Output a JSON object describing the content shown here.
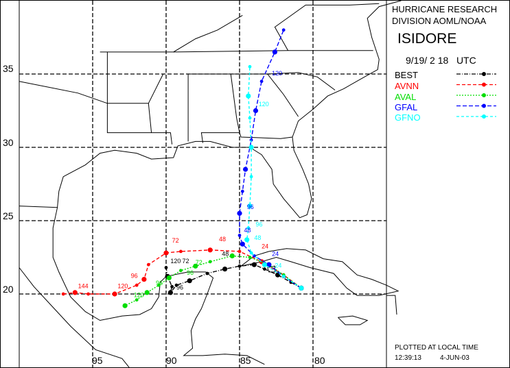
{
  "header": {
    "org_line1": "HURRICANE RESEARCH",
    "org_line2": "DIVISION AOML/NOAA",
    "storm_name": "ISIDORE",
    "datetime": "9/19/ 2 18   UTC"
  },
  "legend": [
    {
      "label": "BEST",
      "color": "#000000"
    },
    {
      "label": "AVNN",
      "color": "#ff0000"
    },
    {
      "label": "AVAL",
      "color": "#00dd00"
    },
    {
      "label": "GFAL",
      "color": "#0000ff"
    },
    {
      "label": "GFNO",
      "color": "#00ffff"
    }
  ],
  "footer": {
    "plotted": "PLOTTED AT LOCAL TIME",
    "time": "12:39:13",
    "date": "4-JUN-03"
  },
  "axes": {
    "lat_labels": [
      "35",
      "30",
      "25",
      "20"
    ],
    "lon_labels": [
      "95",
      "90",
      "85",
      "80"
    ]
  },
  "map": {
    "lon_range": [
      -100,
      -75
    ],
    "lat_range": [
      15,
      40
    ]
  },
  "tracks": {
    "BEST": [
      [
        -80.8,
        20.4
      ],
      [
        -81.5,
        20.8
      ],
      [
        -82.4,
        21.3
      ],
      [
        -83.3,
        21.7
      ],
      [
        -84.0,
        22.0
      ],
      [
        -85.0,
        21.9
      ],
      [
        -86.0,
        21.7
      ],
      [
        -87.2,
        21.4
      ],
      [
        -88.4,
        20.9
      ],
      [
        -89.3,
        20.6
      ],
      [
        -89.7,
        20.1
      ],
      [
        -89.6,
        20.5
      ],
      [
        -89.9,
        21.2
      ],
      [
        -90.0,
        21.8
      ]
    ],
    "AVNN": [
      [
        -80.8,
        20.4
      ],
      [
        -82.0,
        21.3
      ],
      [
        -83.5,
        22.2
      ],
      [
        -85.0,
        22.9
      ],
      [
        -87.0,
        23.0
      ],
      [
        -89.0,
        22.9
      ],
      [
        -90.0,
        22.8
      ],
      [
        -91.2,
        22.0
      ],
      [
        -91.5,
        21.0
      ],
      [
        -92.0,
        20.6
      ],
      [
        -93.5,
        20.0
      ],
      [
        -95.3,
        20.0
      ],
      [
        -96.2,
        20.1
      ],
      [
        -97.0,
        20.0
      ]
    ],
    "AVAL": [
      [
        -80.8,
        20.4
      ],
      [
        -82.0,
        21.3
      ],
      [
        -83.0,
        22.0
      ],
      [
        -84.3,
        22.5
      ],
      [
        -85.5,
        22.6
      ],
      [
        -87.0,
        22.2
      ],
      [
        -88.0,
        21.9
      ],
      [
        -89.0,
        21.6
      ],
      [
        -89.8,
        21.1
      ],
      [
        -90.5,
        20.6
      ],
      [
        -91.3,
        20.1
      ],
      [
        -92.0,
        19.6
      ],
      [
        -92.8,
        19.2
      ]
    ],
    "GFAL": [
      [
        -80.8,
        20.4
      ],
      [
        -82.0,
        21.2
      ],
      [
        -83.0,
        22.0
      ],
      [
        -84.0,
        22.6
      ],
      [
        -84.8,
        23.4
      ],
      [
        -85.0,
        24.0
      ],
      [
        -85.0,
        25.5
      ],
      [
        -84.8,
        27.0
      ],
      [
        -84.6,
        28.5
      ],
      [
        -84.2,
        30.5
      ],
      [
        -83.9,
        32.5
      ],
      [
        -83.5,
        34.5
      ],
      [
        -82.6,
        36.5
      ],
      [
        -82.0,
        38.0
      ]
    ],
    "GFNO": [
      [
        -80.8,
        20.4
      ],
      [
        -82.0,
        21.2
      ],
      [
        -83.3,
        22.0
      ],
      [
        -84.2,
        22.8
      ],
      [
        -84.5,
        23.7
      ],
      [
        -84.4,
        24.5
      ],
      [
        -84.3,
        26.0
      ],
      [
        -84.2,
        28.0
      ],
      [
        -84.2,
        30.0
      ],
      [
        -84.3,
        32.0
      ],
      [
        -84.4,
        33.5
      ],
      [
        -84.3,
        35.5
      ]
    ]
  },
  "track_labels": [
    {
      "text": "144",
      "color": "#ff0000",
      "lon": -96.0,
      "lat": 20.4
    },
    {
      "text": "120",
      "color": "#ff0000",
      "lon": -93.3,
      "lat": 20.4
    },
    {
      "text": "96",
      "color": "#ff0000",
      "lon": -92.4,
      "lat": 21.1
    },
    {
      "text": "72",
      "color": "#ff0000",
      "lon": -89.6,
      "lat": 23.5
    },
    {
      "text": "48",
      "color": "#ff0000",
      "lon": -86.4,
      "lat": 23.6
    },
    {
      "text": "24",
      "color": "#ff0000",
      "lon": -83.5,
      "lat": 23.1
    },
    {
      "text": "120",
      "color": "#00dd00",
      "lon": -92.2,
      "lat": 19.8
    },
    {
      "text": "96",
      "color": "#00dd00",
      "lon": -90.7,
      "lat": 20.6
    },
    {
      "text": "96",
      "color": "#00dd00",
      "lon": -88.6,
      "lat": 21.3
    },
    {
      "text": "72",
      "color": "#00dd00",
      "lon": -88.0,
      "lat": 22.0
    },
    {
      "text": "96",
      "color": "#000000",
      "lon": -89.3,
      "lat": 20.3
    },
    {
      "text": "120",
      "color": "#000000",
      "lon": -89.7,
      "lat": 22.1
    },
    {
      "text": "72",
      "color": "#000000",
      "lon": -88.9,
      "lat": 22.1
    },
    {
      "text": "48",
      "color": "#000000",
      "lon": -86.2,
      "lat": 22.6
    },
    {
      "text": "24",
      "color": "#0000ff",
      "lon": -82.8,
      "lat": 22.6
    },
    {
      "text": "48",
      "color": "#0000ff",
      "lon": -84.7,
      "lat": 24.2
    },
    {
      "text": "96",
      "color": "#0000ff",
      "lon": -84.5,
      "lat": 25.8
    },
    {
      "text": "120",
      "color": "#0000ff",
      "lon": -82.8,
      "lat": 34.9
    },
    {
      "text": "24",
      "color": "#00ffff",
      "lon": -82.6,
      "lat": 21.8
    },
    {
      "text": "48",
      "color": "#00ffff",
      "lon": -84.0,
      "lat": 23.7
    },
    {
      "text": "96",
      "color": "#00ffff",
      "lon": -83.9,
      "lat": 24.6
    },
    {
      "text": "120",
      "color": "#00ffff",
      "lon": -83.7,
      "lat": 32.8
    }
  ]
}
